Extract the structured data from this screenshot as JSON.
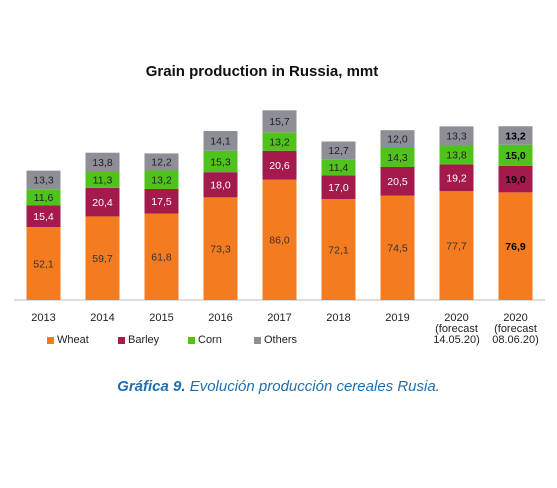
{
  "chart_data": {
    "type": "stacked_bar",
    "title": "Grain production in Russia, mmt",
    "categories": [
      "2013",
      "2014",
      "2015",
      "2016",
      "2017",
      "2018",
      "2019",
      "2020\n(forecast\n14.05.20)",
      "2020\n(forecast\n08.06.20)"
    ],
    "series": [
      {
        "name": "Wheat",
        "color": "#f47b20",
        "values": [
          52.1,
          59.7,
          61.8,
          73.3,
          86.0,
          72.1,
          74.5,
          77.7,
          76.9
        ],
        "value_labels": [
          "52,1",
          "59,7",
          "61,8",
          "73,3",
          "86,0",
          "72,1",
          "74,5",
          "77,7",
          "76,9"
        ]
      },
      {
        "name": "Barley",
        "color": "#a31a4b",
        "values": [
          15.4,
          20.4,
          17.5,
          18.0,
          20.6,
          17.0,
          20.5,
          19.2,
          19.0
        ],
        "value_labels": [
          "15,4",
          "20,4",
          "17,5",
          "18,0",
          "20,6",
          "17,0",
          "20,5",
          "19,2",
          "19,0"
        ]
      },
      {
        "name": "Corn",
        "color": "#4fc31c",
        "values": [
          11.6,
          11.3,
          13.2,
          15.3,
          13.2,
          11.4,
          14.3,
          13.8,
          15.0
        ],
        "value_labels": [
          "11,6",
          "11,3",
          "13,2",
          "15,3",
          "13,2",
          "11,4",
          "14,3",
          "13,8",
          "15,0"
        ]
      },
      {
        "name": "Others",
        "color": "#8d8e96",
        "values": [
          13.3,
          13.8,
          12.2,
          14.1,
          15.7,
          12.7,
          12.0,
          13.3,
          13.2
        ],
        "value_labels": [
          "13,3",
          "13,8",
          "12,2",
          "14,1",
          "15,7",
          "12,7",
          "12,0",
          "13,3",
          "13,2"
        ]
      }
    ],
    "ylim": [
      0,
      140
    ],
    "bold_last_category": true
  },
  "caption": {
    "label": "Gráfica 9.",
    "text": "Evolución producción cereales Rusia."
  }
}
